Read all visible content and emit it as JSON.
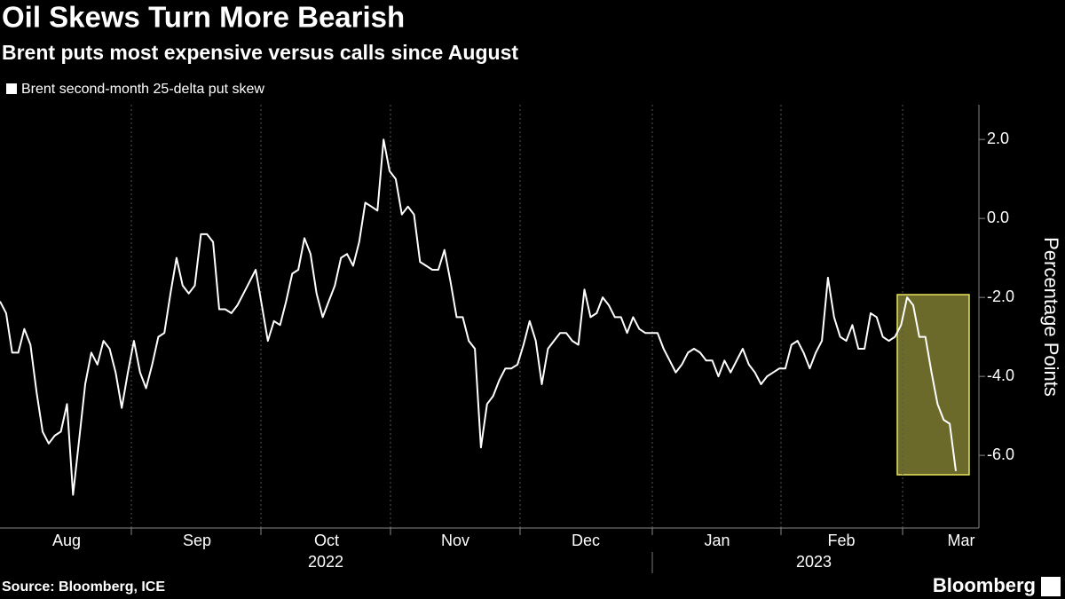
{
  "chart_data": {
    "type": "line",
    "title": "Oil Skews Turn More Bearish",
    "subtitle": "Brent puts most expensive versus calls since August",
    "y_label": "Percentage Points",
    "source": "Source: Bloomberg, ICE",
    "brand": "Bloomberg",
    "month_labels": [
      "Aug",
      "Sep",
      "Oct",
      "Nov",
      "Dec",
      "Jan",
      "Feb",
      "Mar"
    ],
    "year_labels": [
      "2022",
      "2023"
    ],
    "ylim": [
      -7.84,
      2.88
    ],
    "yticks": [
      {
        "value": -6,
        "label": "-6.0"
      },
      {
        "value": -4,
        "label": "-4.0"
      },
      {
        "value": -2,
        "label": "-2.0"
      },
      {
        "value": 0,
        "label": "0.0"
      },
      {
        "value": 2,
        "label": "2.0"
      }
    ],
    "series": [
      {
        "name": "Brent second-month 25-delta put skew",
        "color": "#ffffff",
        "values": [
          -2.1,
          -2.4,
          -3.4,
          -3.4,
          -2.8,
          -3.2,
          -4.4,
          -5.4,
          -5.7,
          -5.5,
          -5.4,
          -4.7,
          -7.0,
          -5.6,
          -4.2,
          -3.4,
          -3.7,
          -3.1,
          -3.3,
          -3.9,
          -4.8,
          -3.9,
          -3.1,
          -3.9,
          -4.3,
          -3.7,
          -3.0,
          -2.9,
          -1.9,
          -1.0,
          -1.7,
          -1.9,
          -1.7,
          -0.4,
          -0.4,
          -0.6,
          -2.3,
          -2.3,
          -2.4,
          -2.2,
          -1.9,
          -1.6,
          -1.3,
          -2.2,
          -3.1,
          -2.6,
          -2.7,
          -2.1,
          -1.4,
          -1.3,
          -0.5,
          -0.9,
          -1.9,
          -2.5,
          -2.1,
          -1.7,
          -1.0,
          -0.9,
          -1.2,
          -0.6,
          0.4,
          0.3,
          0.2,
          2.0,
          1.2,
          1.0,
          0.1,
          0.3,
          0.1,
          -1.1,
          -1.2,
          -1.3,
          -1.3,
          -0.8,
          -1.6,
          -2.5,
          -2.5,
          -3.1,
          -3.3,
          -5.8,
          -4.7,
          -4.5,
          -4.1,
          -3.8,
          -3.8,
          -3.7,
          -3.2,
          -2.6,
          -3.1,
          -4.2,
          -3.3,
          -3.1,
          -2.9,
          -2.9,
          -3.1,
          -3.2,
          -1.8,
          -2.5,
          -2.4,
          -2.0,
          -2.2,
          -2.5,
          -2.5,
          -2.9,
          -2.5,
          -2.8,
          -2.9,
          -2.9,
          -2.9,
          -3.3,
          -3.6,
          -3.9,
          -3.7,
          -3.4,
          -3.3,
          -3.4,
          -3.6,
          -3.6,
          -4.0,
          -3.6,
          -3.9,
          -3.6,
          -3.3,
          -3.7,
          -3.9,
          -4.2,
          -4.0,
          -3.9,
          -3.8,
          -3.8,
          -3.2,
          -3.1,
          -3.4,
          -3.8,
          -3.4,
          -3.1,
          -1.5,
          -2.5,
          -3.0,
          -3.1,
          -2.7,
          -3.3,
          -3.3,
          -2.4,
          -2.5,
          -3.0,
          -3.1,
          -3.0,
          -2.7,
          -2.0,
          -2.2,
          -3.0,
          -3.0,
          -3.9,
          -4.7,
          -5.1,
          -5.2,
          -6.4
        ]
      }
    ]
  }
}
